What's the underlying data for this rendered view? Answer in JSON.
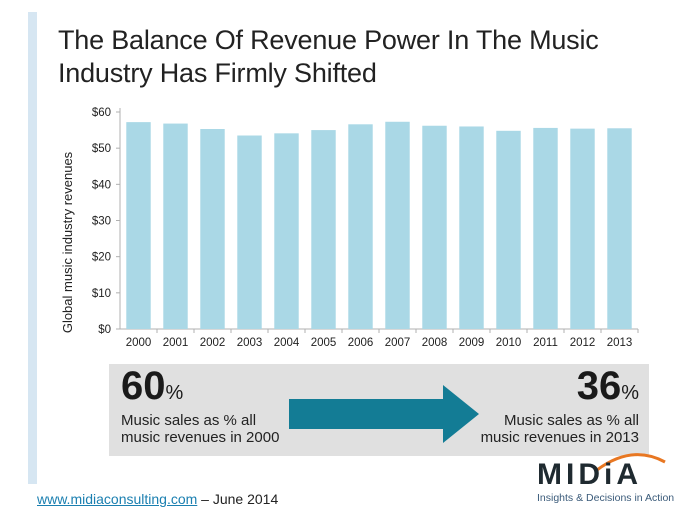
{
  "title": "The Balance Of Revenue Power In The Music Industry Has Firmly Shifted",
  "chart_data": {
    "type": "bar",
    "categories": [
      "2000",
      "2001",
      "2002",
      "2003",
      "2004",
      "2005",
      "2006",
      "2007",
      "2008",
      "2009",
      "2010",
      "2011",
      "2012",
      "2013"
    ],
    "values": [
      57.2,
      56.8,
      55.3,
      53.5,
      54.1,
      55.0,
      56.6,
      57.3,
      56.2,
      56.0,
      54.8,
      55.6,
      55.4,
      55.5
    ],
    "ylabel": "Global music industry revenues",
    "ylim": [
      0,
      60
    ],
    "yticks": [
      0,
      10,
      20,
      30,
      40,
      50,
      60
    ],
    "ytick_labels": [
      "$0",
      "$10",
      "$20",
      "$30",
      "$40",
      "$50",
      "$60"
    ],
    "grid": false,
    "bar_color": "#aad8e6"
  },
  "stats": {
    "left": {
      "value": "60",
      "unit": "%",
      "desc_line1": "Music sales as % all",
      "desc_line2": "music revenues in 2000"
    },
    "right": {
      "value": "36",
      "unit": "%",
      "desc_line1": "Music sales as % all",
      "desc_line2": "music revenues in 2013"
    }
  },
  "arrow_color": "#137c95",
  "footer": {
    "link": "www.midiaconsulting.com",
    "suffix": " – June 2014"
  },
  "brand": {
    "name": "MIDiA",
    "tagline": "Insights & Decisions in Action"
  }
}
